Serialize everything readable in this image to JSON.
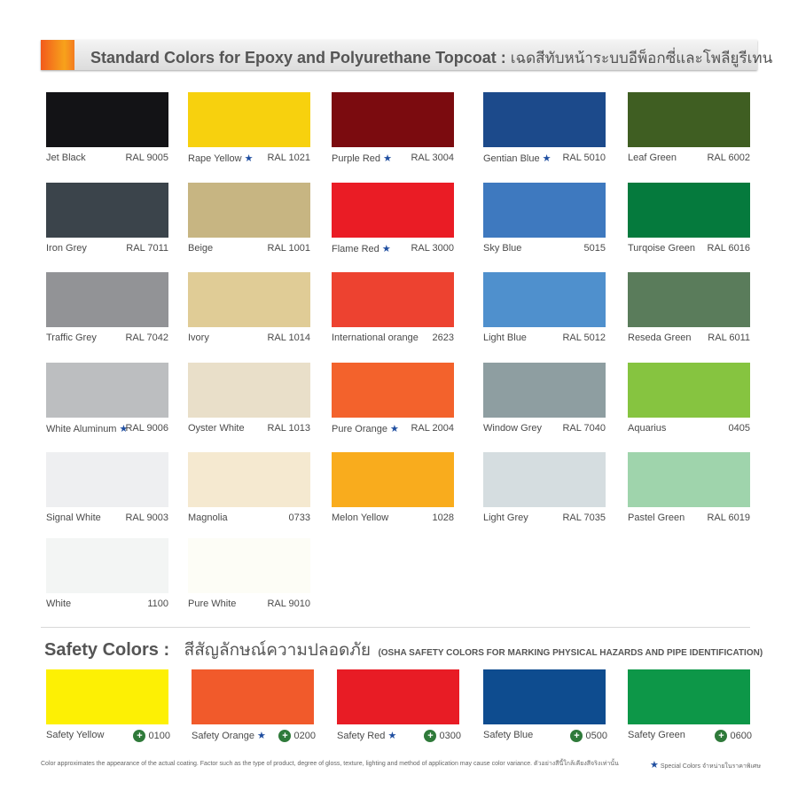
{
  "header": {
    "title_en": "Standard Colors for Epoxy and Polyurethane Topcoat :",
    "title_th": "เฉดสีทับหน้าระบบอีพ็อกซี่และโพลียูรีเทน"
  },
  "standard_colors": [
    {
      "name": "Jet Black",
      "code": "RAL 9005",
      "star": false,
      "hex": "#131316"
    },
    {
      "name": "Rape Yellow",
      "code": "RAL 1021",
      "star": true,
      "hex": "#f7d10e"
    },
    {
      "name": "Purple Red",
      "code": "RAL 3004",
      "star": true,
      "hex": "#7b0b0f"
    },
    {
      "name": "Gentian Blue",
      "code": "RAL 5010",
      "star": true,
      "hex": "#1c4a8b"
    },
    {
      "name": "Leaf Green",
      "code": "RAL 6002",
      "star": false,
      "hex": "#3f5e22"
    },
    {
      "name": "Iron Grey",
      "code": "RAL 7011",
      "star": false,
      "hex": "#3b444b"
    },
    {
      "name": "Beige",
      "code": "RAL 1001",
      "star": false,
      "hex": "#c7b582"
    },
    {
      "name": "Flame Red",
      "code": "RAL 3000",
      "star": true,
      "hex": "#ea1c25"
    },
    {
      "name": "Sky Blue",
      "code": "5015",
      "star": false,
      "hex": "#3e79bf"
    },
    {
      "name": "Turqoise Green",
      "code": "RAL 6016",
      "star": false,
      "hex": "#057a3d"
    },
    {
      "name": "Traffic Grey",
      "code": "RAL 7042",
      "star": false,
      "hex": "#929396"
    },
    {
      "name": "Ivory",
      "code": "RAL 1014",
      "star": false,
      "hex": "#e0cc96"
    },
    {
      "name": "International orange",
      "code": "2623",
      "star": false,
      "hex": "#ed4230"
    },
    {
      "name": "Light Blue",
      "code": "RAL 5012",
      "star": false,
      "hex": "#4f90cd"
    },
    {
      "name": "Reseda Green",
      "code": "RAL 6011",
      "star": false,
      "hex": "#5a7c5b"
    },
    {
      "name": "White Aluminum",
      "code": "RAL 9006",
      "star": true,
      "hex": "#bcbec0"
    },
    {
      "name": "Oyster White",
      "code": "RAL 1013",
      "star": false,
      "hex": "#e9dfc9"
    },
    {
      "name": "Pure Orange",
      "code": "RAL 2004",
      "star": true,
      "hex": "#f3622c"
    },
    {
      "name": "Window Grey",
      "code": "RAL 7040",
      "star": false,
      "hex": "#8e9ea1"
    },
    {
      "name": "Aquarius",
      "code": "0405",
      "star": false,
      "hex": "#86c440"
    },
    {
      "name": "Signal White",
      "code": "RAL 9003",
      "star": false,
      "hex": "#eeeff1"
    },
    {
      "name": "Magnolia",
      "code": "0733",
      "star": false,
      "hex": "#f5e9d0"
    },
    {
      "name": "Melon Yellow",
      "code": "1028",
      "star": false,
      "hex": "#f9ac1d"
    },
    {
      "name": "Light Grey",
      "code": "RAL 7035",
      "star": false,
      "hex": "#d5dde0"
    },
    {
      "name": "Pastel Green",
      "code": "RAL 6019",
      "star": false,
      "hex": "#9fd4ac"
    },
    {
      "name": "White",
      "code": "1100",
      "star": false,
      "hex": "#f3f5f4"
    },
    {
      "name": "Pure White",
      "code": "RAL 9010",
      "star": false,
      "hex": "#fdfdf6"
    }
  ],
  "safety": {
    "title": "Safety Colors :",
    "title_th": "สีสัญลักษณ์ความปลอดภัย",
    "subtitle": "(OSHA SAFETY COLORS FOR MARKING PHYSICAL HAZARDS AND PIPE IDENTIFICATION)",
    "colors": [
      {
        "name": "Safety Yellow",
        "code": "0100",
        "star": false,
        "hex": "#fdf004"
      },
      {
        "name": "Safety Orange",
        "code": "0200",
        "star": true,
        "hex": "#f15a2b"
      },
      {
        "name": "Safety Red",
        "code": "0300",
        "star": true,
        "hex": "#e81c25"
      },
      {
        "name": "Safety Blue",
        "code": "0500",
        "star": false,
        "hex": "#0e4c8f"
      },
      {
        "name": "Safety Green",
        "code": "0600",
        "star": false,
        "hex": "#0d9748"
      }
    ]
  },
  "footer": {
    "note": "Color approximates the appearance of the actual coating. Factor such as the type of product, degree of gloss, texture, lighting and method of application may cause color variance. ตัวอย่างสีนี้ใกล้เคียงสีจริงเท่านั้น",
    "special": "Special Colors จำหน่ายในราคาพิเศษ"
  },
  "icons": {
    "star": "star-icon",
    "cross": "safety-cross-icon"
  }
}
